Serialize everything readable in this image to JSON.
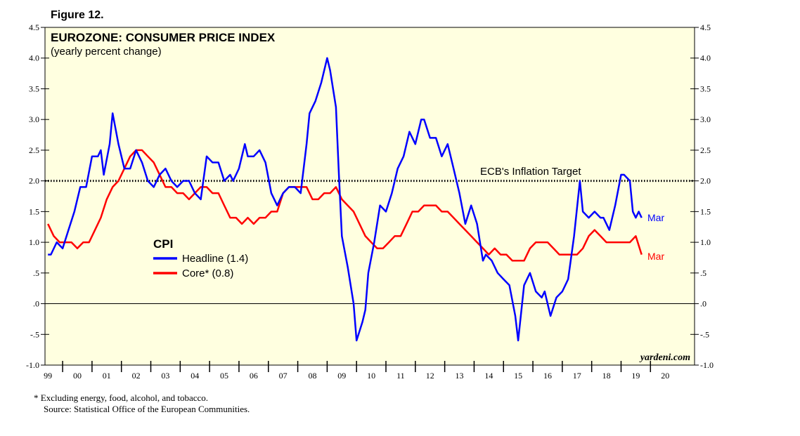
{
  "figure_label": "Figure 12.",
  "footnotes": {
    "line1": "*  Excluding energy, food, alcohol, and tobacco.",
    "line2": "Source: Statistical Office of the European Communities."
  },
  "brand": "yardeni.com",
  "colors": {
    "headline": "#0000ff",
    "core": "#ff0000",
    "plot_background": "#ffffe0",
    "target_line": "#000000"
  },
  "chart_data": {
    "type": "line",
    "title": "EUROZONE: CONSUMER PRICE INDEX",
    "subtitle": "(yearly percent change)",
    "ylim": [
      -1.0,
      4.5
    ],
    "xlim": [
      1998.9,
      2021.0
    ],
    "grid": false,
    "y_ticks": [
      {
        "value": 4.5,
        "label": "4.5"
      },
      {
        "value": 4.0,
        "label": "4.0"
      },
      {
        "value": 3.5,
        "label": "3.5"
      },
      {
        "value": 3.0,
        "label": "3.0"
      },
      {
        "value": 2.5,
        "label": "2.5"
      },
      {
        "value": 2.0,
        "label": "2.0"
      },
      {
        "value": 1.5,
        "label": "1.5"
      },
      {
        "value": 1.0,
        "label": "1.0"
      },
      {
        "value": 0.5,
        "label": ".5"
      },
      {
        "value": 0.0,
        "label": ".0"
      },
      {
        "value": -0.5,
        "label": "-.5"
      },
      {
        "value": -1.0,
        "label": "-1.0"
      }
    ],
    "x_ticks": [
      {
        "value": 1999,
        "label": "99"
      },
      {
        "value": 2000,
        "label": "00"
      },
      {
        "value": 2001,
        "label": "01"
      },
      {
        "value": 2002,
        "label": "02"
      },
      {
        "value": 2003,
        "label": "03"
      },
      {
        "value": 2004,
        "label": "04"
      },
      {
        "value": 2005,
        "label": "05"
      },
      {
        "value": 2006,
        "label": "06"
      },
      {
        "value": 2007,
        "label": "07"
      },
      {
        "value": 2008,
        "label": "08"
      },
      {
        "value": 2009,
        "label": "09"
      },
      {
        "value": 2010,
        "label": "10"
      },
      {
        "value": 2011,
        "label": "11"
      },
      {
        "value": 2012,
        "label": "12"
      },
      {
        "value": 2013,
        "label": "13"
      },
      {
        "value": 2014,
        "label": "14"
      },
      {
        "value": 2015,
        "label": "15"
      },
      {
        "value": 2016,
        "label": "16"
      },
      {
        "value": 2017,
        "label": "17"
      },
      {
        "value": 2018,
        "label": "18"
      },
      {
        "value": 2019,
        "label": "19"
      },
      {
        "value": 2020,
        "label": "20"
      }
    ],
    "reference_lines": [
      {
        "value": 2.0,
        "label": "ECB's Inflation Target",
        "style": "dotted"
      },
      {
        "value": 0.0,
        "style": "solid"
      }
    ],
    "legend": {
      "title": "CPI",
      "placement": "middle-left",
      "entries": [
        {
          "label": "Headline (1.4)",
          "series": "headline"
        },
        {
          "label": "Core* (0.8)",
          "series": "core"
        }
      ]
    },
    "series": [
      {
        "key": "headline",
        "end_label": "Mar",
        "points": [
          [
            1999.0,
            0.8
          ],
          [
            1999.1,
            0.8
          ],
          [
            1999.3,
            1.0
          ],
          [
            1999.5,
            0.9
          ],
          [
            1999.7,
            1.2
          ],
          [
            1999.9,
            1.5
          ],
          [
            2000.1,
            1.9
          ],
          [
            2000.3,
            1.9
          ],
          [
            2000.5,
            2.4
          ],
          [
            2000.7,
            2.4
          ],
          [
            2000.8,
            2.5
          ],
          [
            2000.9,
            2.1
          ],
          [
            2001.1,
            2.6
          ],
          [
            2001.2,
            3.1
          ],
          [
            2001.4,
            2.6
          ],
          [
            2001.6,
            2.2
          ],
          [
            2001.8,
            2.2
          ],
          [
            2002.0,
            2.5
          ],
          [
            2002.2,
            2.3
          ],
          [
            2002.4,
            2.0
          ],
          [
            2002.6,
            1.9
          ],
          [
            2002.8,
            2.1
          ],
          [
            2003.0,
            2.2
          ],
          [
            2003.2,
            2.0
          ],
          [
            2003.4,
            1.9
          ],
          [
            2003.6,
            2.0
          ],
          [
            2003.8,
            2.0
          ],
          [
            2004.0,
            1.8
          ],
          [
            2004.2,
            1.7
          ],
          [
            2004.4,
            2.4
          ],
          [
            2004.6,
            2.3
          ],
          [
            2004.8,
            2.3
          ],
          [
            2005.0,
            2.0
          ],
          [
            2005.2,
            2.1
          ],
          [
            2005.3,
            2.0
          ],
          [
            2005.5,
            2.2
          ],
          [
            2005.7,
            2.6
          ],
          [
            2005.8,
            2.4
          ],
          [
            2006.0,
            2.4
          ],
          [
            2006.2,
            2.5
          ],
          [
            2006.4,
            2.3
          ],
          [
            2006.6,
            1.8
          ],
          [
            2006.8,
            1.6
          ],
          [
            2007.0,
            1.8
          ],
          [
            2007.2,
            1.9
          ],
          [
            2007.4,
            1.9
          ],
          [
            2007.6,
            1.8
          ],
          [
            2007.8,
            2.6
          ],
          [
            2007.9,
            3.1
          ],
          [
            2008.1,
            3.3
          ],
          [
            2008.3,
            3.6
          ],
          [
            2008.5,
            4.0
          ],
          [
            2008.6,
            3.8
          ],
          [
            2008.8,
            3.2
          ],
          [
            2008.9,
            2.1
          ],
          [
            2009.0,
            1.1
          ],
          [
            2009.2,
            0.6
          ],
          [
            2009.4,
            0.0
          ],
          [
            2009.5,
            -0.6
          ],
          [
            2009.7,
            -0.3
          ],
          [
            2009.8,
            -0.1
          ],
          [
            2009.9,
            0.5
          ],
          [
            2010.1,
            1.0
          ],
          [
            2010.3,
            1.6
          ],
          [
            2010.5,
            1.5
          ],
          [
            2010.7,
            1.8
          ],
          [
            2010.9,
            2.2
          ],
          [
            2011.1,
            2.4
          ],
          [
            2011.3,
            2.8
          ],
          [
            2011.5,
            2.6
          ],
          [
            2011.7,
            3.0
          ],
          [
            2011.8,
            3.0
          ],
          [
            2012.0,
            2.7
          ],
          [
            2012.2,
            2.7
          ],
          [
            2012.4,
            2.4
          ],
          [
            2012.6,
            2.6
          ],
          [
            2012.8,
            2.2
          ],
          [
            2013.0,
            1.8
          ],
          [
            2013.2,
            1.3
          ],
          [
            2013.4,
            1.6
          ],
          [
            2013.6,
            1.3
          ],
          [
            2013.8,
            0.7
          ],
          [
            2013.9,
            0.8
          ],
          [
            2014.1,
            0.7
          ],
          [
            2014.3,
            0.5
          ],
          [
            2014.5,
            0.4
          ],
          [
            2014.7,
            0.3
          ],
          [
            2014.9,
            -0.2
          ],
          [
            2015.0,
            -0.6
          ],
          [
            2015.2,
            0.3
          ],
          [
            2015.4,
            0.5
          ],
          [
            2015.6,
            0.2
          ],
          [
            2015.8,
            0.1
          ],
          [
            2015.9,
            0.2
          ],
          [
            2016.1,
            -0.2
          ],
          [
            2016.3,
            0.1
          ],
          [
            2016.5,
            0.2
          ],
          [
            2016.7,
            0.4
          ],
          [
            2016.9,
            1.1
          ],
          [
            2017.1,
            2.0
          ],
          [
            2017.2,
            1.5
          ],
          [
            2017.4,
            1.4
          ],
          [
            2017.6,
            1.5
          ],
          [
            2017.8,
            1.4
          ],
          [
            2017.9,
            1.4
          ],
          [
            2018.1,
            1.2
          ],
          [
            2018.3,
            1.6
          ],
          [
            2018.5,
            2.1
          ],
          [
            2018.6,
            2.1
          ],
          [
            2018.8,
            2.0
          ],
          [
            2018.9,
            1.5
          ],
          [
            2019.0,
            1.4
          ],
          [
            2019.1,
            1.5
          ],
          [
            2019.2,
            1.4
          ]
        ]
      },
      {
        "key": "core",
        "end_label": "Mar",
        "points": [
          [
            1999.0,
            1.3
          ],
          [
            1999.2,
            1.1
          ],
          [
            1999.4,
            1.0
          ],
          [
            1999.6,
            1.0
          ],
          [
            1999.8,
            1.0
          ],
          [
            2000.0,
            0.9
          ],
          [
            2000.2,
            1.0
          ],
          [
            2000.4,
            1.0
          ],
          [
            2000.6,
            1.2
          ],
          [
            2000.8,
            1.4
          ],
          [
            2001.0,
            1.7
          ],
          [
            2001.2,
            1.9
          ],
          [
            2001.4,
            2.0
          ],
          [
            2001.6,
            2.2
          ],
          [
            2001.8,
            2.4
          ],
          [
            2002.0,
            2.5
          ],
          [
            2002.2,
            2.5
          ],
          [
            2002.4,
            2.4
          ],
          [
            2002.6,
            2.3
          ],
          [
            2002.8,
            2.1
          ],
          [
            2003.0,
            1.9
          ],
          [
            2003.2,
            1.9
          ],
          [
            2003.4,
            1.8
          ],
          [
            2003.6,
            1.8
          ],
          [
            2003.8,
            1.7
          ],
          [
            2004.0,
            1.8
          ],
          [
            2004.2,
            1.9
          ],
          [
            2004.4,
            1.9
          ],
          [
            2004.6,
            1.8
          ],
          [
            2004.8,
            1.8
          ],
          [
            2005.0,
            1.6
          ],
          [
            2005.2,
            1.4
          ],
          [
            2005.4,
            1.4
          ],
          [
            2005.6,
            1.3
          ],
          [
            2005.8,
            1.4
          ],
          [
            2006.0,
            1.3
          ],
          [
            2006.2,
            1.4
          ],
          [
            2006.4,
            1.4
          ],
          [
            2006.6,
            1.5
          ],
          [
            2006.8,
            1.5
          ],
          [
            2007.0,
            1.8
          ],
          [
            2007.2,
            1.9
          ],
          [
            2007.4,
            1.9
          ],
          [
            2007.6,
            1.9
          ],
          [
            2007.8,
            1.9
          ],
          [
            2008.0,
            1.7
          ],
          [
            2008.2,
            1.7
          ],
          [
            2008.4,
            1.8
          ],
          [
            2008.6,
            1.8
          ],
          [
            2008.8,
            1.9
          ],
          [
            2009.0,
            1.7
          ],
          [
            2009.2,
            1.6
          ],
          [
            2009.4,
            1.5
          ],
          [
            2009.6,
            1.3
          ],
          [
            2009.8,
            1.1
          ],
          [
            2010.0,
            1.0
          ],
          [
            2010.2,
            0.9
          ],
          [
            2010.4,
            0.9
          ],
          [
            2010.6,
            1.0
          ],
          [
            2010.8,
            1.1
          ],
          [
            2011.0,
            1.1
          ],
          [
            2011.2,
            1.3
          ],
          [
            2011.4,
            1.5
          ],
          [
            2011.6,
            1.5
          ],
          [
            2011.8,
            1.6
          ],
          [
            2012.0,
            1.6
          ],
          [
            2012.2,
            1.6
          ],
          [
            2012.4,
            1.5
          ],
          [
            2012.6,
            1.5
          ],
          [
            2012.8,
            1.4
          ],
          [
            2013.0,
            1.3
          ],
          [
            2013.2,
            1.2
          ],
          [
            2013.4,
            1.1
          ],
          [
            2013.6,
            1.0
          ],
          [
            2013.8,
            0.9
          ],
          [
            2014.0,
            0.8
          ],
          [
            2014.2,
            0.9
          ],
          [
            2014.4,
            0.8
          ],
          [
            2014.6,
            0.8
          ],
          [
            2014.8,
            0.7
          ],
          [
            2015.0,
            0.7
          ],
          [
            2015.2,
            0.7
          ],
          [
            2015.4,
            0.9
          ],
          [
            2015.6,
            1.0
          ],
          [
            2015.8,
            1.0
          ],
          [
            2016.0,
            1.0
          ],
          [
            2016.2,
            0.9
          ],
          [
            2016.4,
            0.8
          ],
          [
            2016.6,
            0.8
          ],
          [
            2016.8,
            0.8
          ],
          [
            2017.0,
            0.8
          ],
          [
            2017.2,
            0.9
          ],
          [
            2017.4,
            1.1
          ],
          [
            2017.6,
            1.2
          ],
          [
            2017.8,
            1.1
          ],
          [
            2018.0,
            1.0
          ],
          [
            2018.2,
            1.0
          ],
          [
            2018.4,
            1.0
          ],
          [
            2018.6,
            1.0
          ],
          [
            2018.8,
            1.0
          ],
          [
            2019.0,
            1.1
          ],
          [
            2019.2,
            0.8
          ]
        ]
      }
    ]
  }
}
